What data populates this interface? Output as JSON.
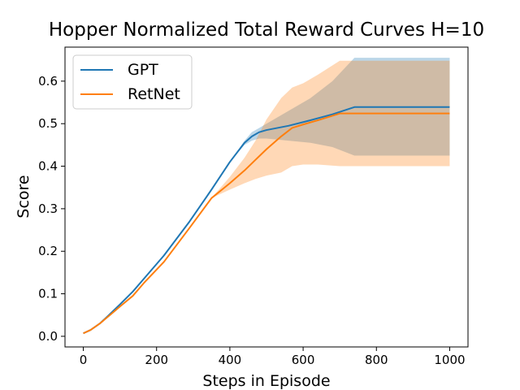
{
  "chart_data": {
    "type": "line",
    "title": "Hopper Normalized Total Reward Curves H=10",
    "xlabel": "Steps in Episode",
    "ylabel": "Score",
    "xlim": [
      -50,
      1050
    ],
    "ylim": [
      -0.025,
      0.68
    ],
    "xticks": [
      0,
      200,
      400,
      600,
      800,
      1000
    ],
    "yticks": [
      0.0,
      0.1,
      0.2,
      0.3,
      0.4,
      0.5,
      0.6
    ],
    "grid": false,
    "legend_position": "top-left",
    "series": [
      {
        "name": "GPT",
        "color": "#1f77b4",
        "x": [
          0,
          20,
          45,
          70,
          100,
          135,
          165,
          220,
          290,
          350,
          400,
          440,
          460,
          480,
          500,
          560,
          620,
          680,
          740,
          800,
          1000
        ],
        "y": [
          0.007,
          0.015,
          0.03,
          0.05,
          0.075,
          0.105,
          0.135,
          0.19,
          0.27,
          0.345,
          0.41,
          0.455,
          0.47,
          0.48,
          0.485,
          0.495,
          0.508,
          0.522,
          0.539,
          0.539,
          0.539
        ],
        "lower": [
          0.007,
          0.015,
          0.03,
          0.05,
          0.075,
          0.105,
          0.135,
          0.19,
          0.27,
          0.345,
          0.41,
          0.45,
          0.46,
          0.465,
          0.465,
          0.46,
          0.455,
          0.445,
          0.425,
          0.425,
          0.425
        ],
        "upper": [
          0.007,
          0.015,
          0.03,
          0.05,
          0.075,
          0.105,
          0.135,
          0.19,
          0.27,
          0.345,
          0.41,
          0.46,
          0.48,
          0.49,
          0.5,
          0.53,
          0.56,
          0.6,
          0.655,
          0.655,
          0.655
        ]
      },
      {
        "name": "RetNet",
        "color": "#ff7f0e",
        "x": [
          0,
          20,
          45,
          70,
          100,
          135,
          165,
          220,
          290,
          350,
          400,
          440,
          470,
          500,
          540,
          570,
          600,
          640,
          700,
          800,
          1000
        ],
        "y": [
          0.007,
          0.015,
          0.03,
          0.048,
          0.07,
          0.095,
          0.125,
          0.175,
          0.255,
          0.325,
          0.36,
          0.39,
          0.415,
          0.44,
          0.47,
          0.49,
          0.498,
          0.508,
          0.524,
          0.524,
          0.524
        ],
        "lower": [
          0.007,
          0.015,
          0.03,
          0.048,
          0.07,
          0.095,
          0.125,
          0.175,
          0.255,
          0.325,
          0.345,
          0.36,
          0.37,
          0.378,
          0.385,
          0.4,
          0.404,
          0.404,
          0.4,
          0.4,
          0.4
        ],
        "upper": [
          0.007,
          0.015,
          0.03,
          0.048,
          0.07,
          0.095,
          0.125,
          0.175,
          0.255,
          0.325,
          0.375,
          0.42,
          0.46,
          0.51,
          0.56,
          0.585,
          0.595,
          0.615,
          0.648,
          0.648,
          0.648
        ]
      }
    ]
  }
}
